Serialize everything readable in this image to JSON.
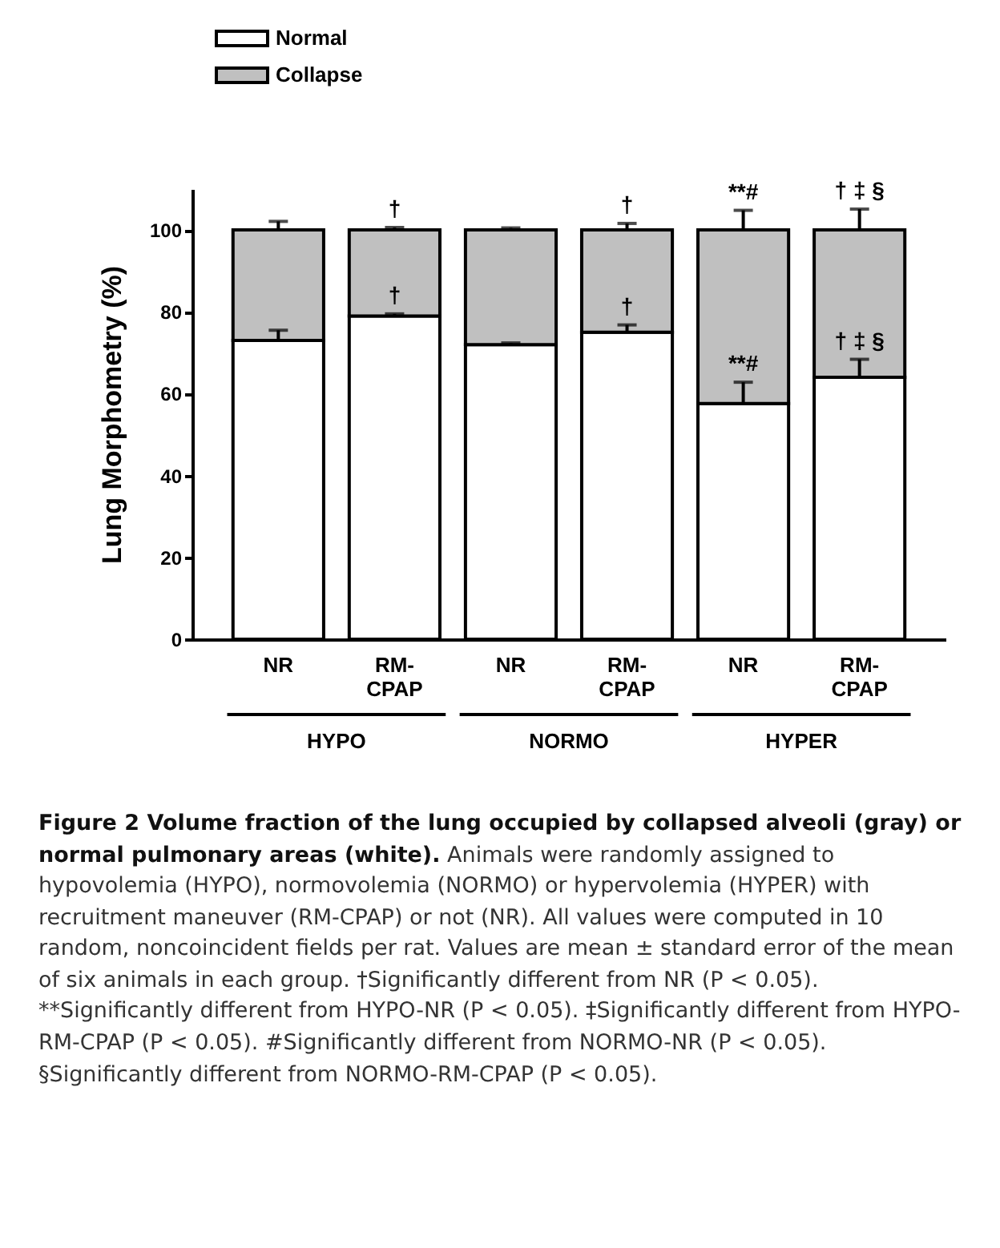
{
  "chart_data": {
    "type": "bar",
    "stacked": true,
    "title": "Figure 2 Volume fraction of the lung occupied by collapsed alveoli (gray) or normal pulmonary areas (white).",
    "subtitle": "Animals were randomly assigned to hypovolemia (HYPO), normovolemia (NORMO) or hypervolemia (HYPER) with recruitment maneuver (RM-CPAP) or not (NR). All values were computed in 10 random, noncoincident fields per rat. Values are mean ± standard error of the mean of six animals in each group. †Significantly different from NR (P < 0.05). **Significantly different from HYPO-NR (P < 0.05). ‡Significantly different from HYPO-RM-CPAP (P < 0.05). #Significantly different from NORMO-NR (P < 0.05). §Significantly different from NORMO-RM-CPAP (P < 0.05).",
    "ylabel": "Lung Morphometry (%)",
    "categories": [
      "NR",
      "RM-CPAP",
      "NR",
      "RM-CPAP",
      "NR",
      "RM-CPAP"
    ],
    "series": [
      {
        "name": "Normal",
        "color": "#ffffff",
        "values": [
          73,
          79,
          72,
          75,
          57.6,
          64
        ],
        "errors": [
          [
            73,
            75.5
          ],
          [
            79,
            79.5
          ],
          [
            72,
            72.4
          ],
          [
            75,
            76.8
          ],
          [
            57.6,
            62.8
          ],
          [
            64,
            68.4
          ]
        ]
      },
      {
        "name": "Collapse",
        "color": "#c0c0c0",
        "values": [
          27,
          21,
          28,
          25,
          42.4,
          36
        ],
        "errors": [
          [
            100,
            102.1
          ],
          [
            100,
            100.6
          ],
          [
            100,
            100.5
          ],
          [
            100,
            101.6
          ],
          [
            100,
            104.8
          ],
          [
            100,
            105.1
          ]
        ]
      }
    ],
    "ylim": [
      0,
      110
    ],
    "yticks": [
      0,
      20,
      40,
      60,
      80,
      100
    ],
    "grid": false,
    "legend": "top left",
    "annotations": [
      {
        "text": "HYPO"
      },
      {
        "text": "NORMO"
      },
      {
        "text": "HYPER"
      },
      "†",
      "†",
      "†",
      "†",
      "**#",
      "**#",
      "† ‡ §",
      "† ‡ §"
    ]
  }
}
